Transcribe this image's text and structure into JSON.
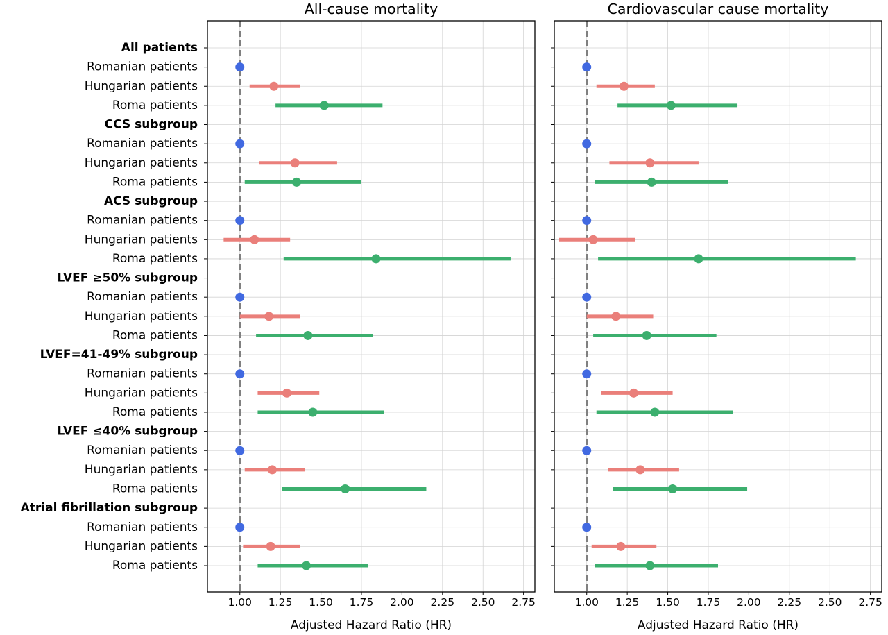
{
  "colors": {
    "reference": "#4169e1",
    "hungarian": "#ea7f7a",
    "roma": "#3caf6e",
    "refline": "#808080",
    "grid": "#d3d3d3"
  },
  "rows": [
    {
      "label": "All patients",
      "header": true
    },
    {
      "label": "Romanian patients",
      "group": "reference"
    },
    {
      "label": "Hungarian patients",
      "group": "hungarian"
    },
    {
      "label": "Roma patients",
      "group": "roma"
    },
    {
      "label": "CCS subgroup",
      "header": true
    },
    {
      "label": "Romanian patients",
      "group": "reference"
    },
    {
      "label": "Hungarian patients",
      "group": "hungarian"
    },
    {
      "label": "Roma patients",
      "group": "roma"
    },
    {
      "label": "ACS subgroup",
      "header": true
    },
    {
      "label": "Romanian patients",
      "group": "reference"
    },
    {
      "label": "Hungarian patients",
      "group": "hungarian"
    },
    {
      "label": "Roma patients",
      "group": "roma"
    },
    {
      "label": "LVEF ≥50% subgroup",
      "header": true
    },
    {
      "label": "Romanian patients",
      "group": "reference"
    },
    {
      "label": "Hungarian patients",
      "group": "hungarian"
    },
    {
      "label": "Roma patients",
      "group": "roma"
    },
    {
      "label": "LVEF=41-49% subgroup",
      "header": true
    },
    {
      "label": "Romanian patients",
      "group": "reference"
    },
    {
      "label": "Hungarian patients",
      "group": "hungarian"
    },
    {
      "label": "Roma patients",
      "group": "roma"
    },
    {
      "label": "LVEF ≤40% subgroup",
      "header": true
    },
    {
      "label": "Romanian patients",
      "group": "reference"
    },
    {
      "label": "Hungarian patients",
      "group": "hungarian"
    },
    {
      "label": "Roma patients",
      "group": "roma"
    },
    {
      "label": "Atrial fibrillation subgroup",
      "header": true
    },
    {
      "label": "Romanian patients",
      "group": "reference"
    },
    {
      "label": "Hungarian patients",
      "group": "hungarian"
    },
    {
      "label": "Roma patients",
      "group": "roma"
    }
  ],
  "chart_data": [
    {
      "type": "forest",
      "title": "All-cause mortality",
      "xlabel": "Adjusted Hazard Ratio (HR)",
      "xlim": [
        0.8,
        2.82
      ],
      "xticks": [
        "1.00",
        "1.25",
        "1.50",
        "1.75",
        "2.00",
        "2.25",
        "2.50",
        "2.75"
      ],
      "reference_line": 1.0,
      "grid": true,
      "points": [
        {
          "row": 1,
          "hr": 1.0,
          "lo": null,
          "hi": null
        },
        {
          "row": 2,
          "hr": 1.21,
          "lo": 1.06,
          "hi": 1.37
        },
        {
          "row": 3,
          "hr": 1.52,
          "lo": 1.22,
          "hi": 1.88
        },
        {
          "row": 5,
          "hr": 1.0,
          "lo": null,
          "hi": null
        },
        {
          "row": 6,
          "hr": 1.34,
          "lo": 1.12,
          "hi": 1.6
        },
        {
          "row": 7,
          "hr": 1.35,
          "lo": 1.03,
          "hi": 1.75
        },
        {
          "row": 9,
          "hr": 1.0,
          "lo": null,
          "hi": null
        },
        {
          "row": 10,
          "hr": 1.09,
          "lo": 0.9,
          "hi": 1.31
        },
        {
          "row": 11,
          "hr": 1.84,
          "lo": 1.27,
          "hi": 2.67
        },
        {
          "row": 13,
          "hr": 1.0,
          "lo": null,
          "hi": null
        },
        {
          "row": 14,
          "hr": 1.18,
          "lo": 1.0,
          "hi": 1.37
        },
        {
          "row": 15,
          "hr": 1.42,
          "lo": 1.1,
          "hi": 1.82
        },
        {
          "row": 17,
          "hr": 1.0,
          "lo": null,
          "hi": null
        },
        {
          "row": 18,
          "hr": 1.29,
          "lo": 1.11,
          "hi": 1.49
        },
        {
          "row": 19,
          "hr": 1.45,
          "lo": 1.11,
          "hi": 1.89
        },
        {
          "row": 21,
          "hr": 1.0,
          "lo": null,
          "hi": null
        },
        {
          "row": 22,
          "hr": 1.2,
          "lo": 1.03,
          "hi": 1.4
        },
        {
          "row": 23,
          "hr": 1.65,
          "lo": 1.26,
          "hi": 2.15
        },
        {
          "row": 25,
          "hr": 1.0,
          "lo": null,
          "hi": null
        },
        {
          "row": 26,
          "hr": 1.19,
          "lo": 1.02,
          "hi": 1.37
        },
        {
          "row": 27,
          "hr": 1.41,
          "lo": 1.11,
          "hi": 1.79
        }
      ]
    },
    {
      "type": "forest",
      "title": "Cardiovascular cause mortality",
      "xlabel": "Adjusted Hazard Ratio (HR)",
      "xlim": [
        0.8,
        2.82
      ],
      "xticks": [
        "1.00",
        "1.25",
        "1.50",
        "1.75",
        "2.00",
        "2.25",
        "2.50",
        "2.75"
      ],
      "reference_line": 1.0,
      "grid": true,
      "points": [
        {
          "row": 1,
          "hr": 1.0,
          "lo": null,
          "hi": null
        },
        {
          "row": 2,
          "hr": 1.23,
          "lo": 1.06,
          "hi": 1.42
        },
        {
          "row": 3,
          "hr": 1.52,
          "lo": 1.19,
          "hi": 1.93
        },
        {
          "row": 5,
          "hr": 1.0,
          "lo": null,
          "hi": null
        },
        {
          "row": 6,
          "hr": 1.39,
          "lo": 1.14,
          "hi": 1.69
        },
        {
          "row": 7,
          "hr": 1.4,
          "lo": 1.05,
          "hi": 1.87
        },
        {
          "row": 9,
          "hr": 1.0,
          "lo": null,
          "hi": null
        },
        {
          "row": 10,
          "hr": 1.04,
          "lo": 0.83,
          "hi": 1.3
        },
        {
          "row": 11,
          "hr": 1.69,
          "lo": 1.07,
          "hi": 2.66
        },
        {
          "row": 13,
          "hr": 1.0,
          "lo": null,
          "hi": null
        },
        {
          "row": 14,
          "hr": 1.18,
          "lo": 1.0,
          "hi": 1.41
        },
        {
          "row": 15,
          "hr": 1.37,
          "lo": 1.04,
          "hi": 1.8
        },
        {
          "row": 17,
          "hr": 1.0,
          "lo": null,
          "hi": null
        },
        {
          "row": 18,
          "hr": 1.29,
          "lo": 1.09,
          "hi": 1.53
        },
        {
          "row": 19,
          "hr": 1.42,
          "lo": 1.06,
          "hi": 1.9
        },
        {
          "row": 21,
          "hr": 1.0,
          "lo": null,
          "hi": null
        },
        {
          "row": 22,
          "hr": 1.33,
          "lo": 1.13,
          "hi": 1.57
        },
        {
          "row": 23,
          "hr": 1.53,
          "lo": 1.16,
          "hi": 1.99
        },
        {
          "row": 25,
          "hr": 1.0,
          "lo": null,
          "hi": null
        },
        {
          "row": 26,
          "hr": 1.21,
          "lo": 1.03,
          "hi": 1.43
        },
        {
          "row": 27,
          "hr": 1.39,
          "lo": 1.05,
          "hi": 1.81
        }
      ]
    }
  ]
}
